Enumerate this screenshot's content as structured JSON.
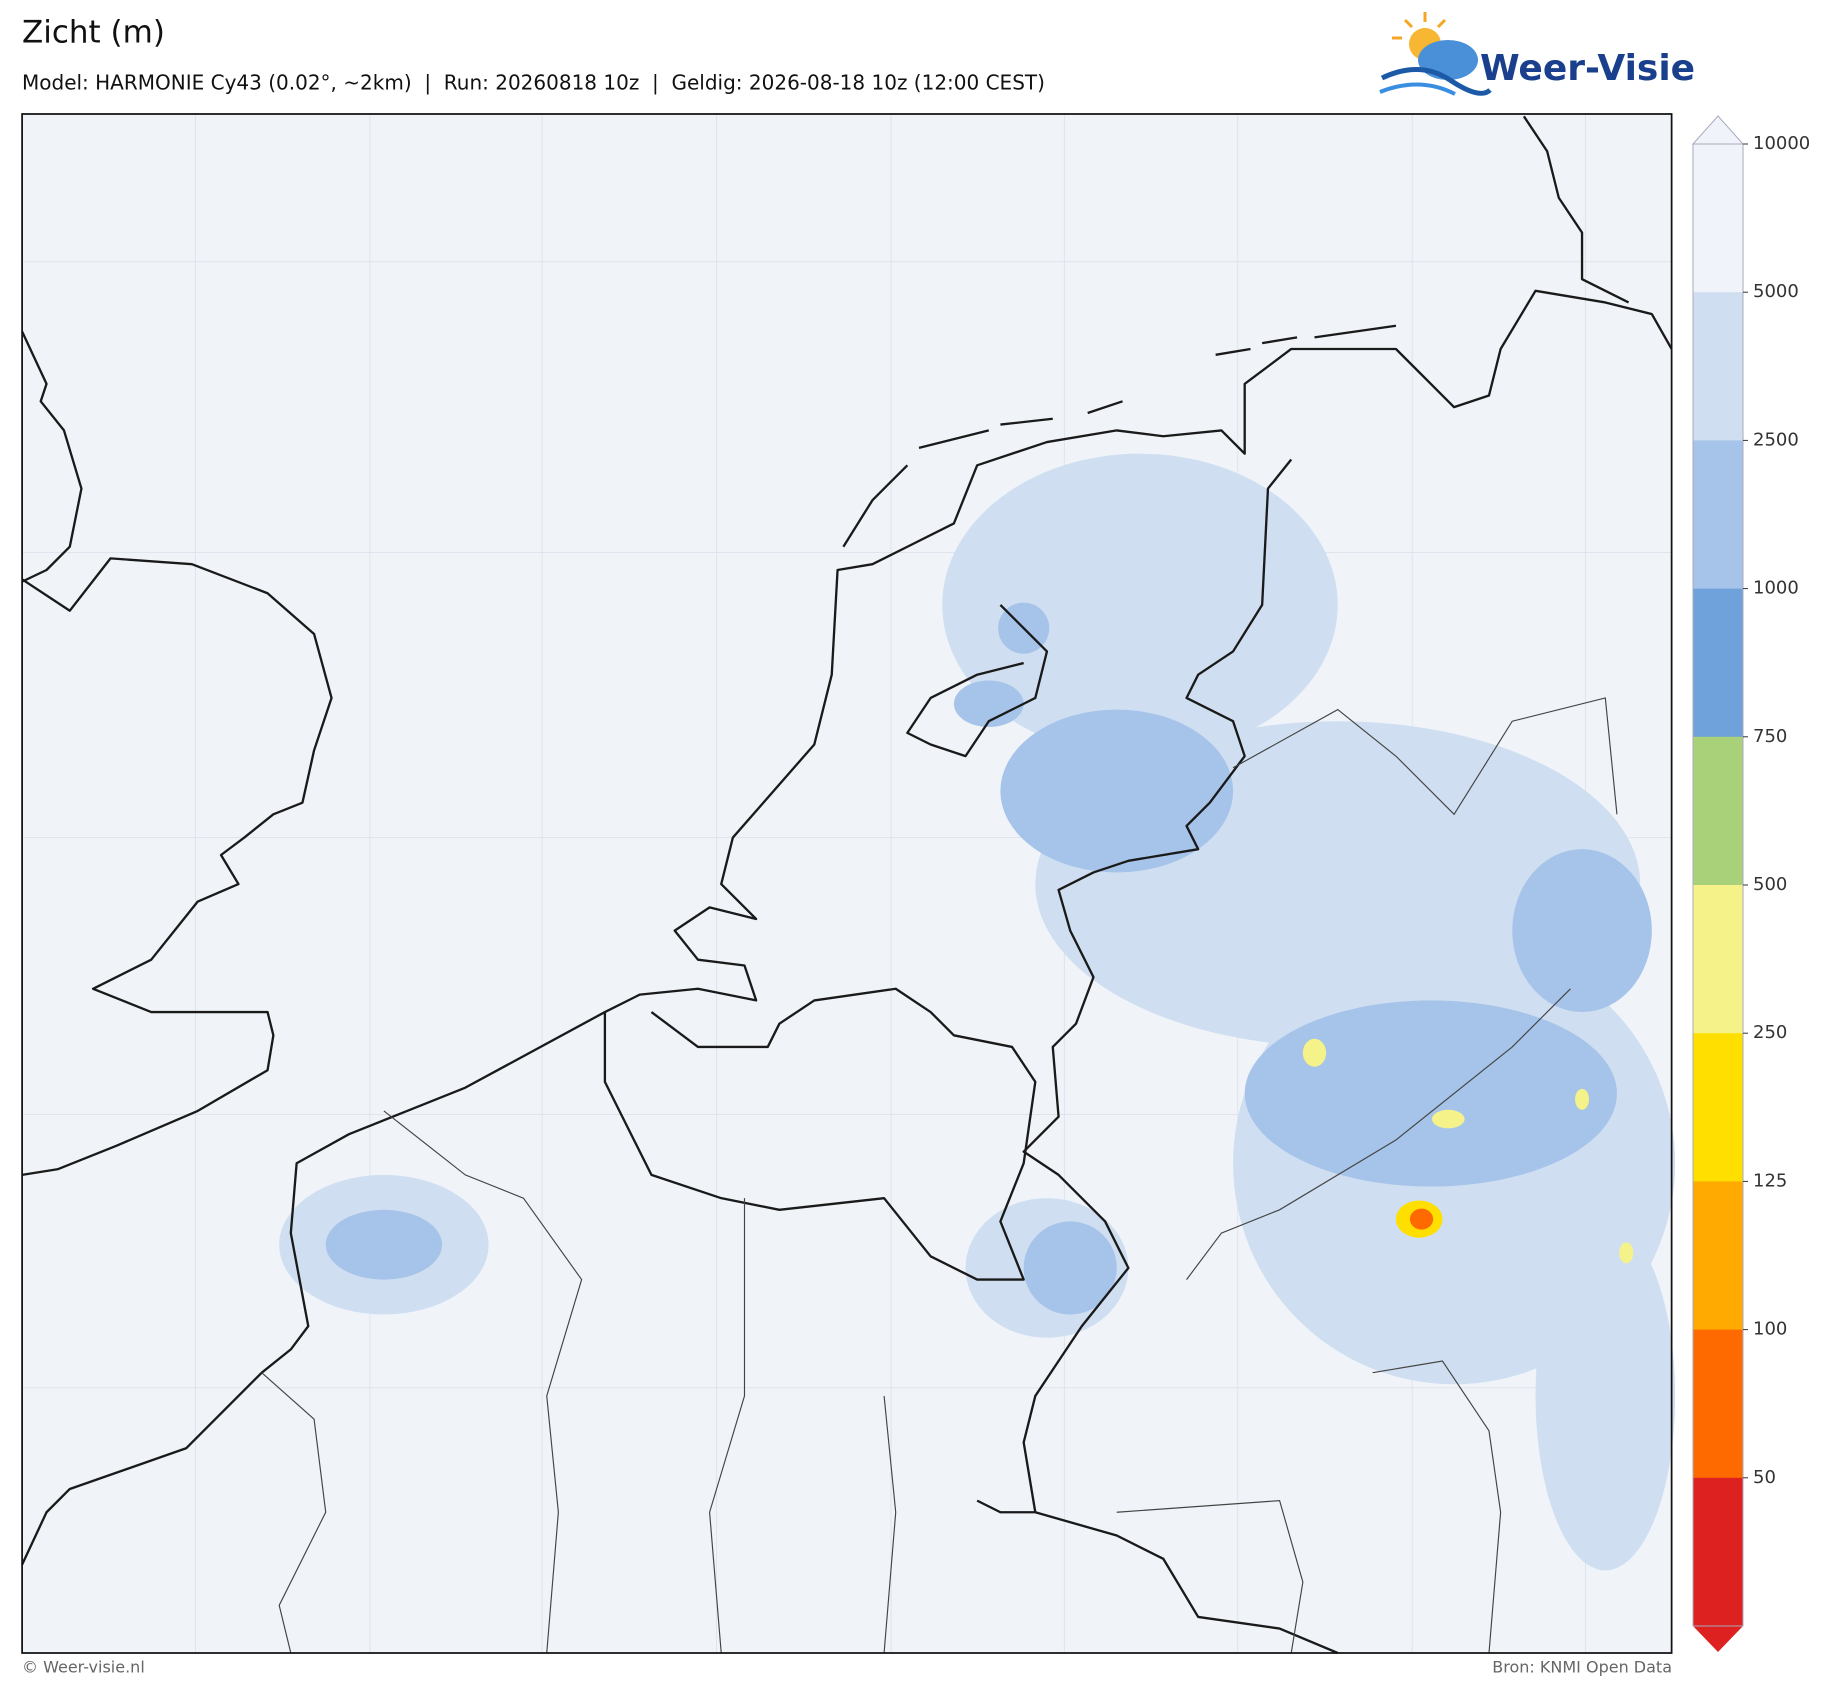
{
  "header": {
    "title": "Zicht (m)",
    "subtitle": "Model: HARMONIE Cy43 (0.02°, ~2km)  |  Run: 20260818 10z  |  Geldig: 2026-08-18 10z (12:00 CEST)"
  },
  "logo": "Weer-Visie",
  "colorbar": {
    "levels": [
      10000,
      5000,
      2500,
      1000,
      750,
      500,
      250,
      125,
      100,
      50
    ],
    "colors": [
      "#f0f4fa",
      "#cfdff1",
      "#a6c4e9",
      "#6fa1da",
      "#a9d17a",
      "#f5f28a",
      "#ffdf00",
      "#ffaa00",
      "#ff6a00",
      "#dd2020"
    ],
    "over_color": "#f0f4fa"
  },
  "footer": {
    "left": "© Weer-visie.nl",
    "right": "Bron: KNMI Open Data"
  }
}
